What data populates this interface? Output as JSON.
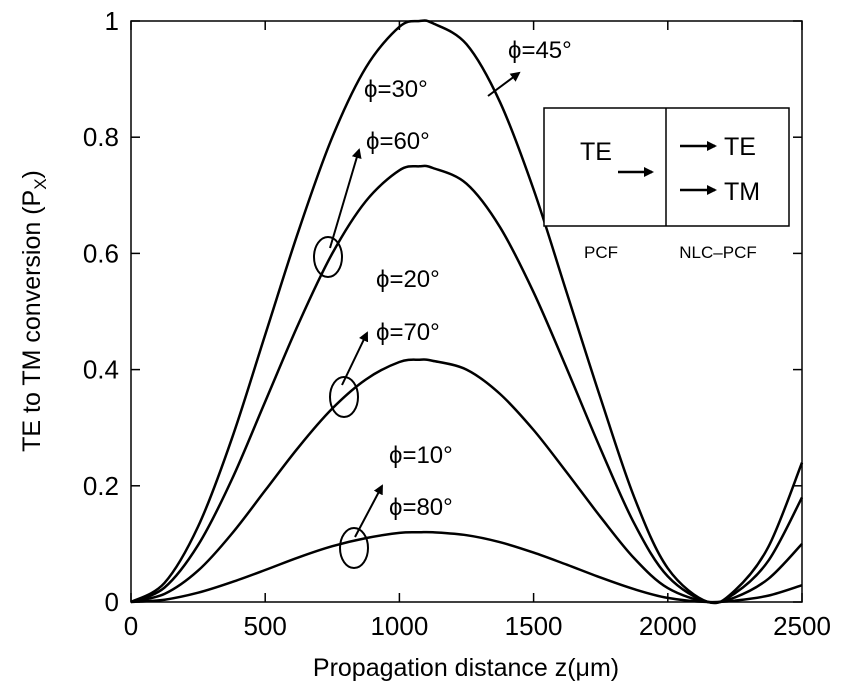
{
  "chart_data": {
    "type": "line",
    "xlabel": "Propagation distance z(μm)",
    "ylabel": "TE to TM conversion (P",
    "ylabel_sub": "X",
    "ylabel_close": ")",
    "xlim": [
      0,
      2500
    ],
    "ylim": [
      0,
      1
    ],
    "xticks": [
      0,
      500,
      1000,
      1500,
      2000,
      2500
    ],
    "xtick_labels": [
      "0",
      "500",
      "1000",
      "1500",
      "2000",
      "2500"
    ],
    "yticks": [
      0,
      0.2,
      0.4,
      0.6,
      0.8,
      1
    ],
    "ytick_labels": [
      "0",
      "0.2",
      "0.4",
      "0.6",
      "0.8",
      "1"
    ],
    "grid": false,
    "x": [
      0,
      125,
      250,
      375,
      500,
      625,
      750,
      875,
      1000,
      1075,
      1125,
      1250,
      1375,
      1500,
      1625,
      1750,
      1875,
      2000,
      2150,
      2250,
      2375,
      2500
    ],
    "series": [
      {
        "values": [
          0,
          0.033,
          0.13,
          0.28,
          0.46,
          0.64,
          0.8,
          0.92,
          0.99,
          1.0,
          0.996,
          0.96,
          0.86,
          0.71,
          0.53,
          0.35,
          0.18,
          0.058,
          0,
          0.02,
          0.095,
          0.24
        ]
      },
      {
        "values": [
          0,
          0.025,
          0.098,
          0.21,
          0.345,
          0.48,
          0.6,
          0.69,
          0.743,
          0.75,
          0.747,
          0.72,
          0.645,
          0.533,
          0.4,
          0.263,
          0.135,
          0.044,
          0,
          0.015,
          0.071,
          0.18
        ]
      },
      {
        "values": [
          0,
          0.014,
          0.054,
          0.117,
          0.192,
          0.267,
          0.333,
          0.383,
          0.413,
          0.417,
          0.415,
          0.4,
          0.358,
          0.296,
          0.222,
          0.146,
          0.075,
          0.024,
          0,
          0.008,
          0.04,
          0.1
        ]
      },
      {
        "values": [
          0,
          0.004,
          0.016,
          0.034,
          0.055,
          0.077,
          0.096,
          0.11,
          0.119,
          0.12,
          0.12,
          0.115,
          0.103,
          0.085,
          0.064,
          0.042,
          0.022,
          0.007,
          0,
          0.0024,
          0.011,
          0.029
        ]
      }
    ],
    "annotations": {
      "phi45": "ϕ=45°",
      "phi30": "ϕ=30°",
      "phi60": "ϕ=60°",
      "phi20": "ϕ=20°",
      "phi70": "ϕ=70°",
      "phi10": "ϕ=10°",
      "phi80": "ϕ=80°"
    },
    "inset": {
      "left_text": "TE",
      "right_top": "TE",
      "right_bottom": "TM",
      "caption_left": "PCF",
      "caption_right": "NLC–PCF"
    }
  }
}
